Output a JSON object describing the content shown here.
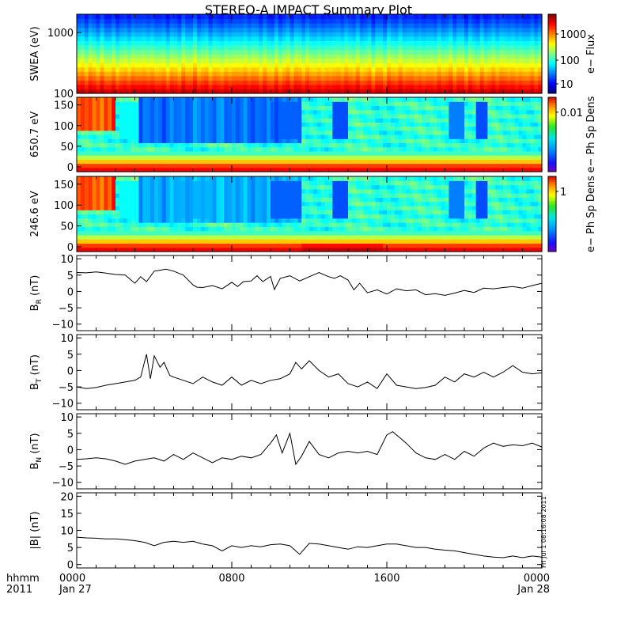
{
  "chart_data": {
    "title": "STEREO-A IMPACT Summary Plot",
    "side_stamp": "Fri Jul 1 08:16:08 2011",
    "x_axis": {
      "row1_label": "hhmm",
      "row2_label": "2011",
      "tick_labels": [
        "0000",
        "0800",
        "1600",
        "0000"
      ],
      "date_labels": [
        "Jan 27",
        "Jan 28"
      ],
      "range_hours": [
        0,
        24
      ],
      "major_ticks_hours": [
        0,
        8,
        16,
        24
      ],
      "minor_step_hours": 1
    },
    "panels": [
      {
        "id": "swea",
        "type": "heatmap",
        "ylabel": "SWEA (eV)",
        "yscale": "log",
        "ylim": [
          100,
          2000
        ],
        "ytick_labels": [
          "1000",
          "100"
        ],
        "colorbar": {
          "label": "e− Flux",
          "scale": "log",
          "tick_labels": [
            "1000",
            "100",
            "10"
          ]
        }
      },
      {
        "id": "pad650",
        "type": "heatmap",
        "ylabel": "650.7 eV",
        "ylim": [
          0,
          180
        ],
        "ytick_labels": [
          "150",
          "100",
          "50",
          "0"
        ],
        "colorbar": {
          "label": "e− Ph Sp Dens",
          "scale": "log",
          "tick_labels": [
            "0.01"
          ]
        }
      },
      {
        "id": "pad246",
        "type": "heatmap",
        "ylabel": "246.6 eV",
        "ylim": [
          0,
          180
        ],
        "ytick_labels": [
          "150",
          "100",
          "50",
          "0"
        ],
        "colorbar": {
          "label": "e− Ph Sp Dens",
          "scale": "log",
          "tick_labels": [
            "1"
          ]
        }
      },
      {
        "id": "br",
        "type": "line",
        "ylabel_main": "B",
        "ylabel_sub": "R",
        "ylabel_unit": " (nT)",
        "ylim": [
          -12,
          11
        ],
        "ytick_values": [
          10,
          5,
          0,
          -5,
          -10
        ],
        "ytick_labels": [
          "10",
          "5",
          "0",
          "−5",
          "−10"
        ],
        "x": [
          0,
          0.5,
          1,
          1.5,
          2,
          2.5,
          3,
          3.3,
          3.6,
          4,
          4.3,
          4.6,
          5,
          5.5,
          6,
          6.2,
          6.5,
          7,
          7.5,
          8,
          8.3,
          8.6,
          9,
          9.3,
          9.6,
          10,
          10.2,
          10.5,
          11,
          11.5,
          12,
          12.5,
          13,
          13.3,
          13.6,
          14,
          14.3,
          14.6,
          15,
          15.5,
          16,
          16.5,
          17,
          17.5,
          18,
          18.5,
          19,
          19.5,
          20,
          20.5,
          21,
          21.5,
          22,
          22.5,
          23,
          23.5,
          24
        ],
        "y": [
          5.8,
          5.7,
          6.0,
          5.6,
          5.2,
          5.0,
          2.5,
          4.5,
          3.0,
          6.2,
          6.5,
          6.8,
          6.2,
          5.0,
          2.0,
          1.3,
          1.2,
          1.8,
          0.8,
          2.8,
          1.5,
          3.0,
          3.2,
          4.8,
          3.0,
          4.6,
          0.6,
          4.0,
          4.8,
          3.2,
          4.5,
          5.8,
          4.5,
          4.0,
          4.8,
          3.5,
          0.5,
          2.5,
          -0.4,
          0.5,
          -0.8,
          0.8,
          0.2,
          0.5,
          -1.0,
          -0.7,
          -1.2,
          -0.5,
          0.3,
          -0.3,
          1.0,
          0.8,
          1.2,
          1.5,
          1.0,
          1.8,
          2.5
        ]
      },
      {
        "id": "bt",
        "type": "line",
        "ylabel_main": "B",
        "ylabel_sub": "T",
        "ylabel_unit": " (nT)",
        "ylim": [
          -12,
          11
        ],
        "ytick_values": [
          10,
          5,
          0,
          -5,
          -10
        ],
        "ytick_labels": [
          "10",
          "5",
          "0",
          "−5",
          "−10"
        ],
        "x": [
          0,
          0.5,
          1,
          1.5,
          2,
          2.5,
          3,
          3.3,
          3.6,
          3.8,
          4,
          4.3,
          4.5,
          4.8,
          5,
          5.5,
          6,
          6.5,
          7,
          7.5,
          8,
          8.5,
          9,
          9.5,
          10,
          10.5,
          11,
          11.3,
          11.6,
          12,
          12.5,
          13,
          13.5,
          14,
          14.5,
          15,
          15.5,
          16,
          16.5,
          17,
          17.5,
          18,
          18.5,
          19,
          19.5,
          20,
          20.5,
          21,
          21.5,
          22,
          22.5,
          23,
          23.5,
          24
        ],
        "y": [
          -5.0,
          -5.5,
          -5.2,
          -4.5,
          -4.0,
          -3.5,
          -3.0,
          -2.0,
          5.0,
          -2.5,
          4.5,
          1.0,
          2.5,
          -1.5,
          -2.0,
          -3.0,
          -4.0,
          -2.0,
          -3.5,
          -4.5,
          -2.0,
          -4.5,
          -3.0,
          -4.0,
          -3.0,
          -2.5,
          -1.0,
          2.5,
          0.5,
          3.0,
          0.0,
          -2.0,
          -1.0,
          -4.0,
          -5.0,
          -3.5,
          -5.5,
          -1.0,
          -4.5,
          -5.0,
          -5.5,
          -5.2,
          -4.5,
          -2.0,
          -3.5,
          -1.0,
          -2.0,
          -0.5,
          -2.0,
          -0.5,
          1.5,
          -0.5,
          -1.0,
          -0.7
        ]
      },
      {
        "id": "bn",
        "type": "line",
        "ylabel_main": "B",
        "ylabel_sub": "N",
        "ylabel_unit": " (nT)",
        "ylim": [
          -12,
          11
        ],
        "ytick_values": [
          10,
          5,
          0,
          -5,
          -10
        ],
        "ytick_labels": [
          "10",
          "5",
          "0",
          "−5",
          "−10"
        ],
        "x": [
          0,
          0.5,
          1,
          1.5,
          2,
          2.5,
          3,
          3.5,
          4,
          4.5,
          5,
          5.5,
          6,
          6.5,
          7,
          7.5,
          8,
          8.5,
          9,
          9.5,
          10,
          10.3,
          10.6,
          11,
          11.3,
          11.6,
          12,
          12.5,
          13,
          13.5,
          14,
          14.5,
          15,
          15.5,
          16,
          16.3,
          16.6,
          17,
          17.5,
          18,
          18.5,
          19,
          19.5,
          20,
          20.5,
          21,
          21.5,
          22,
          22.5,
          23,
          23.5,
          24
        ],
        "y": [
          -3.0,
          -2.8,
          -2.5,
          -2.8,
          -3.5,
          -4.5,
          -3.5,
          -3.0,
          -2.5,
          -3.5,
          -1.5,
          -3.0,
          -1.0,
          -2.5,
          -4.0,
          -2.5,
          -3.0,
          -2.0,
          -2.5,
          -1.5,
          2.0,
          4.5,
          -1.0,
          5.0,
          -4.5,
          -2.0,
          2.5,
          -1.5,
          -2.5,
          -1.0,
          -0.5,
          -1.0,
          -0.5,
          -1.5,
          4.5,
          5.5,
          4.0,
          2.0,
          -1.0,
          -2.5,
          -3.0,
          -1.5,
          -3.0,
          -0.5,
          -2.0,
          0.5,
          2.0,
          1.0,
          1.5,
          1.2,
          2.0,
          0.8
        ]
      },
      {
        "id": "bmag",
        "type": "line",
        "ylabel_main": "|B|",
        "ylabel_sub": "",
        "ylabel_unit": " (nT)",
        "ylim": [
          -1,
          21
        ],
        "ytick_values": [
          20,
          15,
          10,
          5,
          0
        ],
        "ytick_labels": [
          "20",
          "15",
          "10",
          "5",
          "0"
        ],
        "x": [
          0,
          0.5,
          1,
          1.5,
          2,
          2.5,
          3,
          3.5,
          4,
          4.5,
          5,
          5.5,
          6,
          6.5,
          7,
          7.5,
          8,
          8.5,
          9,
          9.5,
          10,
          10.5,
          11,
          11.5,
          12,
          12.5,
          13,
          13.5,
          14,
          14.5,
          15,
          15.5,
          16,
          16.5,
          17,
          17.5,
          18,
          18.5,
          19,
          19.5,
          20,
          20.5,
          21,
          21.5,
          22,
          22.5,
          23,
          23.5,
          24
        ],
        "y": [
          8.0,
          7.8,
          7.7,
          7.5,
          7.5,
          7.3,
          7.0,
          6.5,
          5.5,
          6.5,
          6.8,
          6.5,
          6.8,
          6.0,
          5.5,
          4.0,
          5.5,
          5.0,
          5.5,
          5.2,
          5.8,
          6.0,
          5.5,
          3.0,
          6.2,
          6.0,
          5.5,
          5.0,
          4.5,
          5.2,
          5.0,
          5.5,
          6.0,
          6.0,
          5.5,
          5.0,
          5.0,
          4.5,
          4.2,
          4.0,
          3.5,
          3.0,
          2.5,
          2.2,
          2.0,
          2.5,
          2.0,
          2.5,
          2.2
        ]
      }
    ]
  }
}
